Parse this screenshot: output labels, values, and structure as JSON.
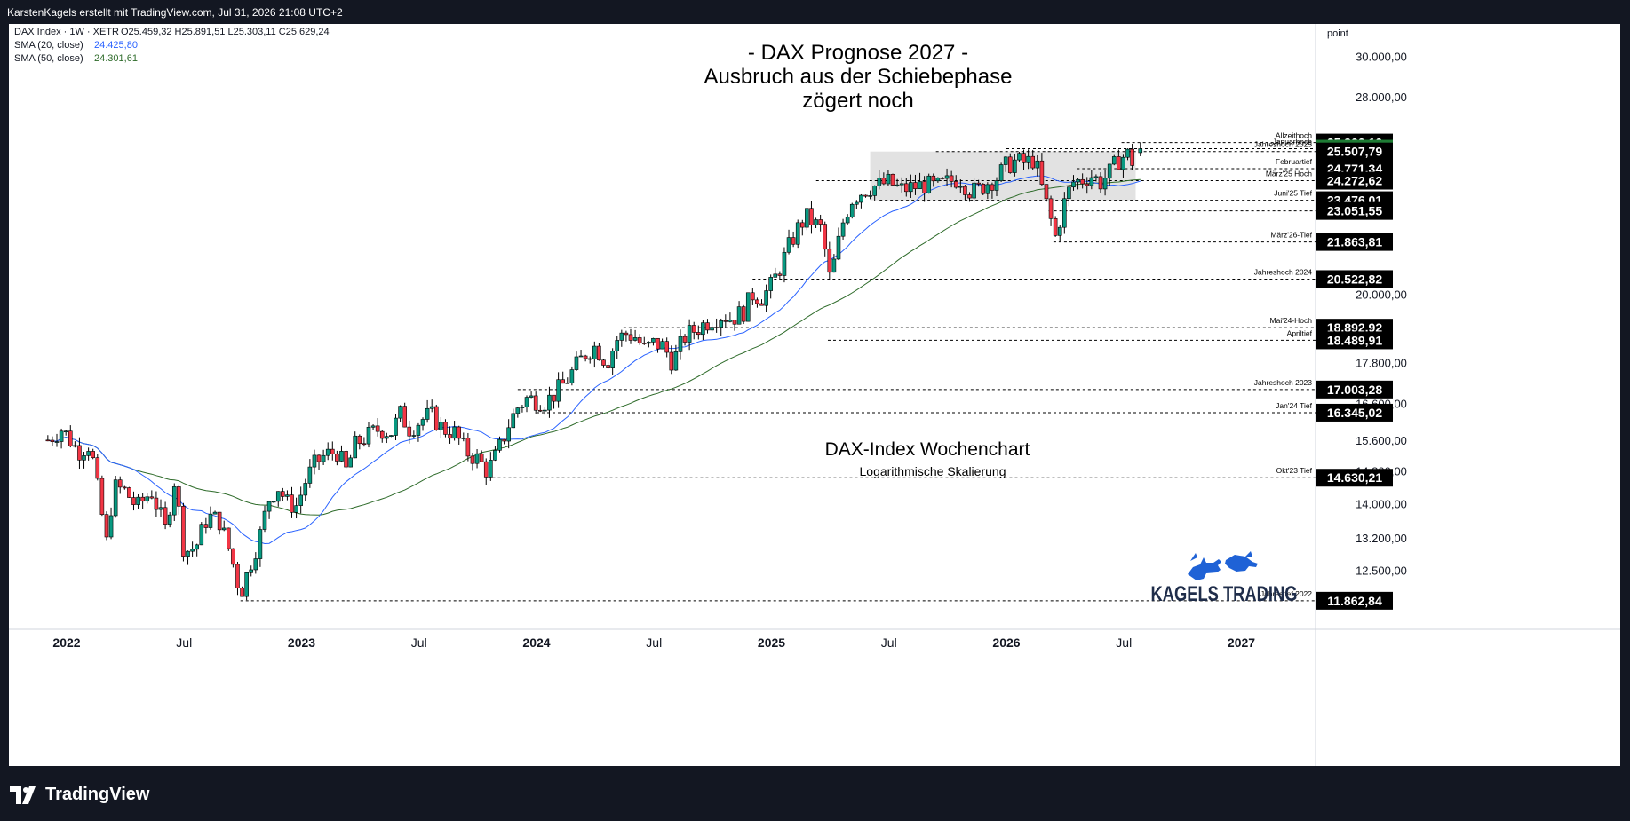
{
  "header": {
    "credit": "KarstenKagels erstellt mit TradingView.com, Jul 31, 2026 21:08 UTC+2"
  },
  "legend": {
    "symbol": "DAX Index · 1W · XETR",
    "ohlc": "O25.459,32  H25.891,51  L25.303,11  C25.629,24",
    "sma20_label": "SMA (20, close)",
    "sma20_value": "24.425,80",
    "sma50_label": "SMA (50, close)",
    "sma50_value": "24.301,61"
  },
  "annotations": {
    "title_lines": [
      "- DAX Prognose 2027 -",
      "Ausbruch aus der Schiebephase",
      "zögert noch"
    ],
    "chart_name": "DAX-Index Wochenchart",
    "scale_note": "Logarithmische Skalierung",
    "brand": "KAGELS TRADING",
    "axis_unit": "point"
  },
  "footer": {
    "logo_text": "TradingView"
  },
  "colors": {
    "up": "#089981",
    "down": "#f23645",
    "sma20": "#2962ff",
    "sma50": "#2e6b2a",
    "last_price": "#1e7b34",
    "label_bg": "#000000"
  },
  "chart_data": {
    "type": "candlestick",
    "scale": "log",
    "interval": "1W",
    "ylim": [
      11300,
      31700
    ],
    "y_ticks": [
      "30.000,00",
      "28.000,00",
      "20.000,00",
      "17.800,00",
      "16.600,00",
      "15.600,00",
      "14.800,00",
      "14.000,00",
      "13.200,00",
      "12.500,00"
    ],
    "x_ticks": [
      "2022",
      "Jul",
      "2023",
      "Jul",
      "2024",
      "Jul",
      "2025",
      "Jul",
      "2026",
      "Jul",
      "2027"
    ],
    "levels": [
      {
        "label": "Allzeithoch",
        "value": "25.900,10"
      },
      {
        "label": "Januarhoch",
        "value": "25.629,24"
      },
      {
        "label": "Jahreshoch 2025",
        "value": "25.507,79"
      },
      {
        "label": "Februartief",
        "value": "24.771,34"
      },
      {
        "label": "März'25 Hoch",
        "value": "24.272,62"
      },
      {
        "label": "Juni'25 Tief",
        "value": "23.476,01"
      },
      {
        "label": "",
        "value": "23.051,55"
      },
      {
        "label": "März'26-Tief",
        "value": "21.863,81"
      },
      {
        "label": "Jahreshoch 2024",
        "value": "20.522,82"
      },
      {
        "label": "Mai'24-Hoch",
        "value": "18.892,92"
      },
      {
        "label": "Apriltief",
        "value": "18.489,91"
      },
      {
        "label": "Jahreshoch 2023",
        "value": "17.003,28"
      },
      {
        "label": "Jan'24 Tief",
        "value": "16.345,02"
      },
      {
        "label": "Okt'23 Tief",
        "value": "14.630,21"
      },
      {
        "label": "Jahrestief 2022",
        "value": "11.862,84"
      }
    ],
    "last": {
      "open": 25459.32,
      "high": 25891.51,
      "low": 25303.11,
      "close": 25629.24
    },
    "sma20_last": 24425.8,
    "sma50_last": 24301.61,
    "consolidation_zone": [
      23476,
      25507.79
    ],
    "path": [
      [
        2021.92,
        15600
      ],
      [
        2021.98,
        15900
      ],
      [
        2022.05,
        15300
      ],
      [
        2022.1,
        15500
      ],
      [
        2022.17,
        13100
      ],
      [
        2022.2,
        14400
      ],
      [
        2022.25,
        14300
      ],
      [
        2022.3,
        13900
      ],
      [
        2022.36,
        14300
      ],
      [
        2022.42,
        13400
      ],
      [
        2022.46,
        14600
      ],
      [
        2022.5,
        12900
      ],
      [
        2022.55,
        13000
      ],
      [
        2022.6,
        13700
      ],
      [
        2022.65,
        13600
      ],
      [
        2022.7,
        12800
      ],
      [
        2022.74,
        12000
      ],
      [
        2022.78,
        12600
      ],
      [
        2022.82,
        13200
      ],
      [
        2022.86,
        14100
      ],
      [
        2022.9,
        14400
      ],
      [
        2022.94,
        14000
      ],
      [
        2022.98,
        13950
      ],
      [
        2023.02,
        14600
      ],
      [
        2023.06,
        15000
      ],
      [
        2023.1,
        15200
      ],
      [
        2023.15,
        15300
      ],
      [
        2023.19,
        14800
      ],
      [
        2023.23,
        15500
      ],
      [
        2023.28,
        15700
      ],
      [
        2023.33,
        15900
      ],
      [
        2023.38,
        15800
      ],
      [
        2023.42,
        16300
      ],
      [
        2023.46,
        15900
      ],
      [
        2023.5,
        16100
      ],
      [
        2023.55,
        16300
      ],
      [
        2023.6,
        15900
      ],
      [
        2023.65,
        15800
      ],
      [
        2023.7,
        15300
      ],
      [
        2023.75,
        15100
      ],
      [
        2023.79,
        14800
      ],
      [
        2023.83,
        15200
      ],
      [
        2023.88,
        16000
      ],
      [
        2023.92,
        16500
      ],
      [
        2023.96,
        16750
      ],
      [
        2024.0,
        16700
      ],
      [
        2024.04,
        16650
      ],
      [
        2024.08,
        16900
      ],
      [
        2024.12,
        17200
      ],
      [
        2024.17,
        17700
      ],
      [
        2024.21,
        18100
      ],
      [
        2024.25,
        18300
      ],
      [
        2024.3,
        17800
      ],
      [
        2024.34,
        18500
      ],
      [
        2024.38,
        18700
      ],
      [
        2024.42,
        18600
      ],
      [
        2024.46,
        18200
      ],
      [
        2024.5,
        18400
      ],
      [
        2024.54,
        18300
      ],
      [
        2024.58,
        17800
      ],
      [
        2024.63,
        18600
      ],
      [
        2024.67,
        18800
      ],
      [
        2024.71,
        19000
      ],
      [
        2024.75,
        19200
      ],
      [
        2024.79,
        19300
      ],
      [
        2024.83,
        19200
      ],
      [
        2024.88,
        19400
      ],
      [
        2024.92,
        20000
      ],
      [
        2024.96,
        19900
      ],
      [
        2025.0,
        20300
      ],
      [
        2025.04,
        21000
      ],
      [
        2025.08,
        21800
      ],
      [
        2025.12,
        22500
      ],
      [
        2025.15,
        22800
      ],
      [
        2025.19,
        22500
      ],
      [
        2025.22,
        22300
      ],
      [
        2025.24,
        20400
      ],
      [
        2025.27,
        21200
      ],
      [
        2025.3,
        22500
      ],
      [
        2025.34,
        23500
      ],
      [
        2025.38,
        23800
      ],
      [
        2025.42,
        24000
      ],
      [
        2025.46,
        24100
      ],
      [
        2025.5,
        24200
      ],
      [
        2025.55,
        23900
      ],
      [
        2025.6,
        24000
      ],
      [
        2025.65,
        24100
      ],
      [
        2025.7,
        24000
      ],
      [
        2025.75,
        24200
      ],
      [
        2025.8,
        24400
      ],
      [
        2025.85,
        23800
      ],
      [
        2025.88,
        23900
      ],
      [
        2025.92,
        24200
      ],
      [
        2025.96,
        24400
      ],
      [
        2026.0,
        24900
      ],
      [
        2026.04,
        25100
      ],
      [
        2026.08,
        25000
      ],
      [
        2026.12,
        25200
      ],
      [
        2026.15,
        24000
      ],
      [
        2026.18,
        23000
      ],
      [
        2026.21,
        22000
      ],
      [
        2026.24,
        23200
      ],
      [
        2026.28,
        24200
      ],
      [
        2026.32,
        24300
      ],
      [
        2026.36,
        24500
      ],
      [
        2026.4,
        24200
      ],
      [
        2026.44,
        24600
      ],
      [
        2026.48,
        25200
      ],
      [
        2026.52,
        25400
      ],
      [
        2026.55,
        24800
      ],
      [
        2026.58,
        25500
      ]
    ]
  }
}
